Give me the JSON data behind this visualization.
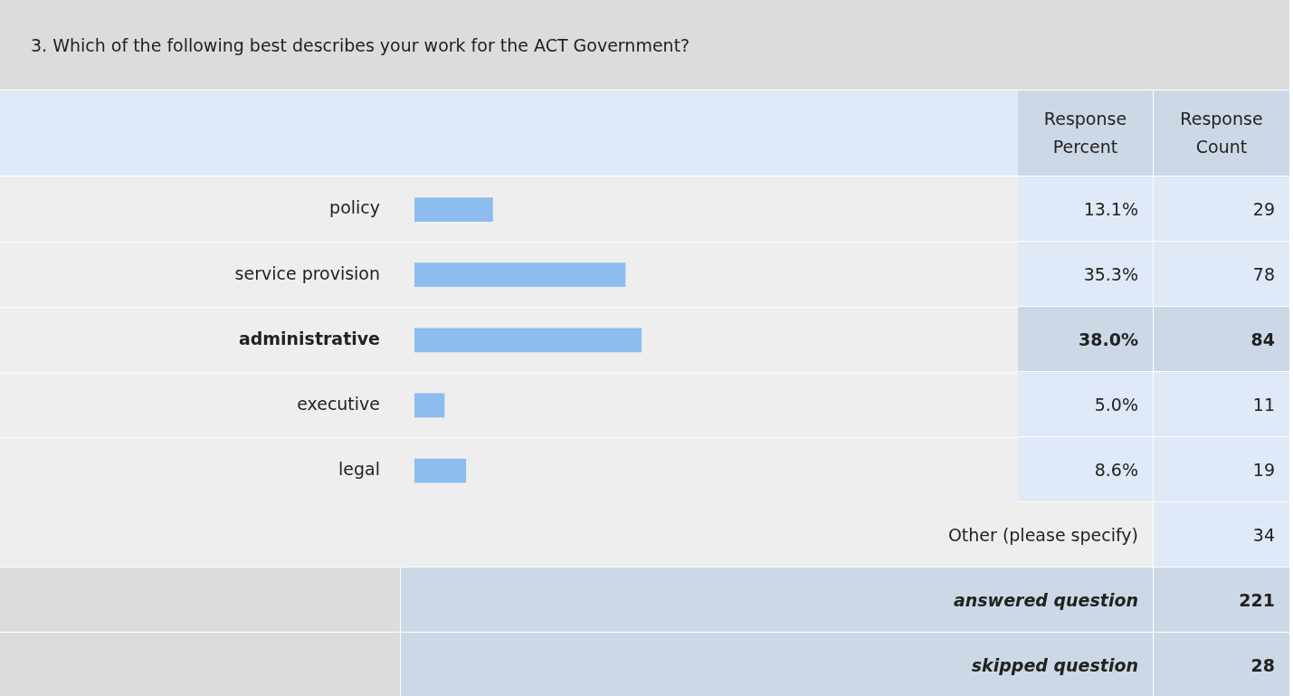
{
  "chart_data": {
    "type": "bar",
    "orientation": "horizontal",
    "title": "3. Which of the following best describes your work for the ACT Government?",
    "categories": [
      "policy",
      "service provision",
      "administrative",
      "executive",
      "legal"
    ],
    "series": [
      {
        "color": "#8dbdee",
        "values": [
          13.1,
          35.3,
          38.0,
          5.0,
          8.6
        ],
        "value_labels": [
          "13.1%",
          "35.3%",
          "38.0%",
          "5.0%",
          "8.6%"
        ]
      }
    ],
    "tick_labels": "y",
    "grid": "y",
    "annotations": [
      "Response Percent",
      "Response Count",
      "29",
      "78",
      "84",
      "11",
      "19",
      "Other (please specify)",
      "34",
      "answered question",
      "221",
      "skipped question",
      "28"
    ]
  }
}
